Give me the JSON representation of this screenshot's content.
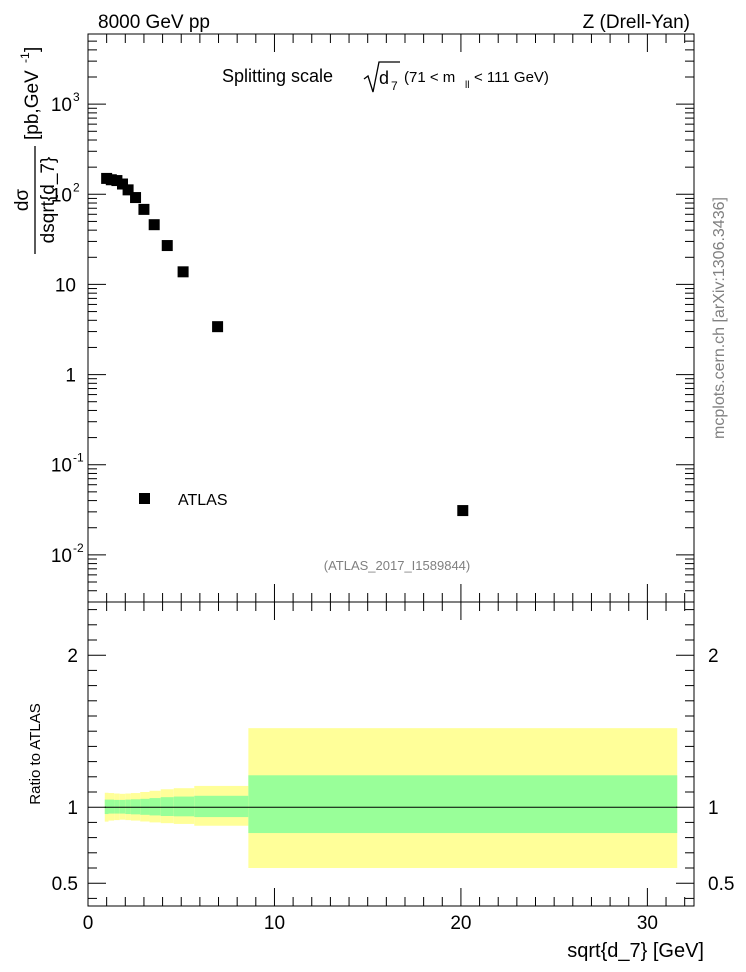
{
  "header": {
    "left": "8000 GeV pp",
    "right": "Z (Drell-Yan)"
  },
  "side_note": "mcplots.cern.ch [arXiv:1306.3436]",
  "chart_data": [
    {
      "type": "scatter",
      "panel": "main",
      "title_main": "Splitting scale",
      "title_sqrt": "d",
      "title_sqrt_sub": "7",
      "title_range_pre": "(71 < m",
      "title_range_sub": "ll",
      "title_range_post": " < 111 GeV)",
      "ylabel_num": "dσ",
      "ylabel_den": "dsqrt{d_7}",
      "ylabel_unit": "[pb,GeV",
      "ylabel_unit_sup": "-1",
      "ylabel_unit_close": "]",
      "yscale": "log",
      "ylim": [
        0.003,
        6000
      ],
      "xlim": [
        0,
        32.5
      ],
      "yticks": [
        {
          "base": "10",
          "exp": "-2",
          "value": 0.01
        },
        {
          "base": "10",
          "exp": "-1",
          "value": 0.1
        },
        {
          "base": "1",
          "exp": "",
          "value": 1
        },
        {
          "base": "10",
          "exp": "",
          "value": 10
        },
        {
          "base": "10",
          "exp": "2",
          "value": 100
        },
        {
          "base": "10",
          "exp": "3",
          "value": 1000
        }
      ],
      "series": [
        {
          "name": "ATLAS",
          "color": "#000000",
          "x": [
            1.0,
            1.25,
            1.55,
            1.85,
            2.15,
            2.55,
            3.0,
            3.55,
            4.25,
            5.1,
            6.95,
            20.1
          ],
          "y": [
            150,
            145,
            142,
            130,
            112,
            92,
            68,
            46,
            27,
            13.8,
            3.4,
            0.031
          ]
        }
      ],
      "legend": {
        "position": "bottom-left"
      },
      "watermark": "(ATLAS_2017_I1589844)"
    },
    {
      "type": "area",
      "panel": "ratio",
      "ylabel": "Ratio to ATLAS",
      "ylim": [
        0.35,
        2.35
      ],
      "xlim": [
        0,
        32.5
      ],
      "yticks": [
        "0.5",
        "1",
        "2"
      ],
      "ytick_values": [
        0.5,
        1,
        2
      ],
      "xticks": [
        "0",
        "10",
        "20",
        "30"
      ],
      "xtick_values": [
        0,
        10,
        20,
        30
      ],
      "xlabel": "sqrt{d_7} [GeV]",
      "reference_line": 1,
      "bin_edges": [
        0.9,
        1.1,
        1.4,
        1.7,
        2.0,
        2.3,
        2.8,
        3.3,
        3.9,
        4.6,
        5.7,
        8.6,
        31.6
      ],
      "inner_band_low": [
        0.955,
        0.958,
        0.958,
        0.958,
        0.955,
        0.953,
        0.95,
        0.946,
        0.942,
        0.94,
        0.935,
        0.83
      ],
      "inner_band_high": [
        1.05,
        1.05,
        1.048,
        1.048,
        1.05,
        1.052,
        1.055,
        1.06,
        1.066,
        1.07,
        1.075,
        1.21
      ],
      "outer_band_low": [
        0.905,
        0.912,
        0.915,
        0.918,
        0.915,
        0.912,
        0.906,
        0.9,
        0.895,
        0.89,
        0.878,
        0.6
      ],
      "outer_band_high": [
        1.095,
        1.093,
        1.09,
        1.088,
        1.09,
        1.093,
        1.1,
        1.108,
        1.118,
        1.125,
        1.14,
        1.52
      ],
      "inner_color": "#99ff99",
      "outer_color": "#ffff99"
    }
  ]
}
